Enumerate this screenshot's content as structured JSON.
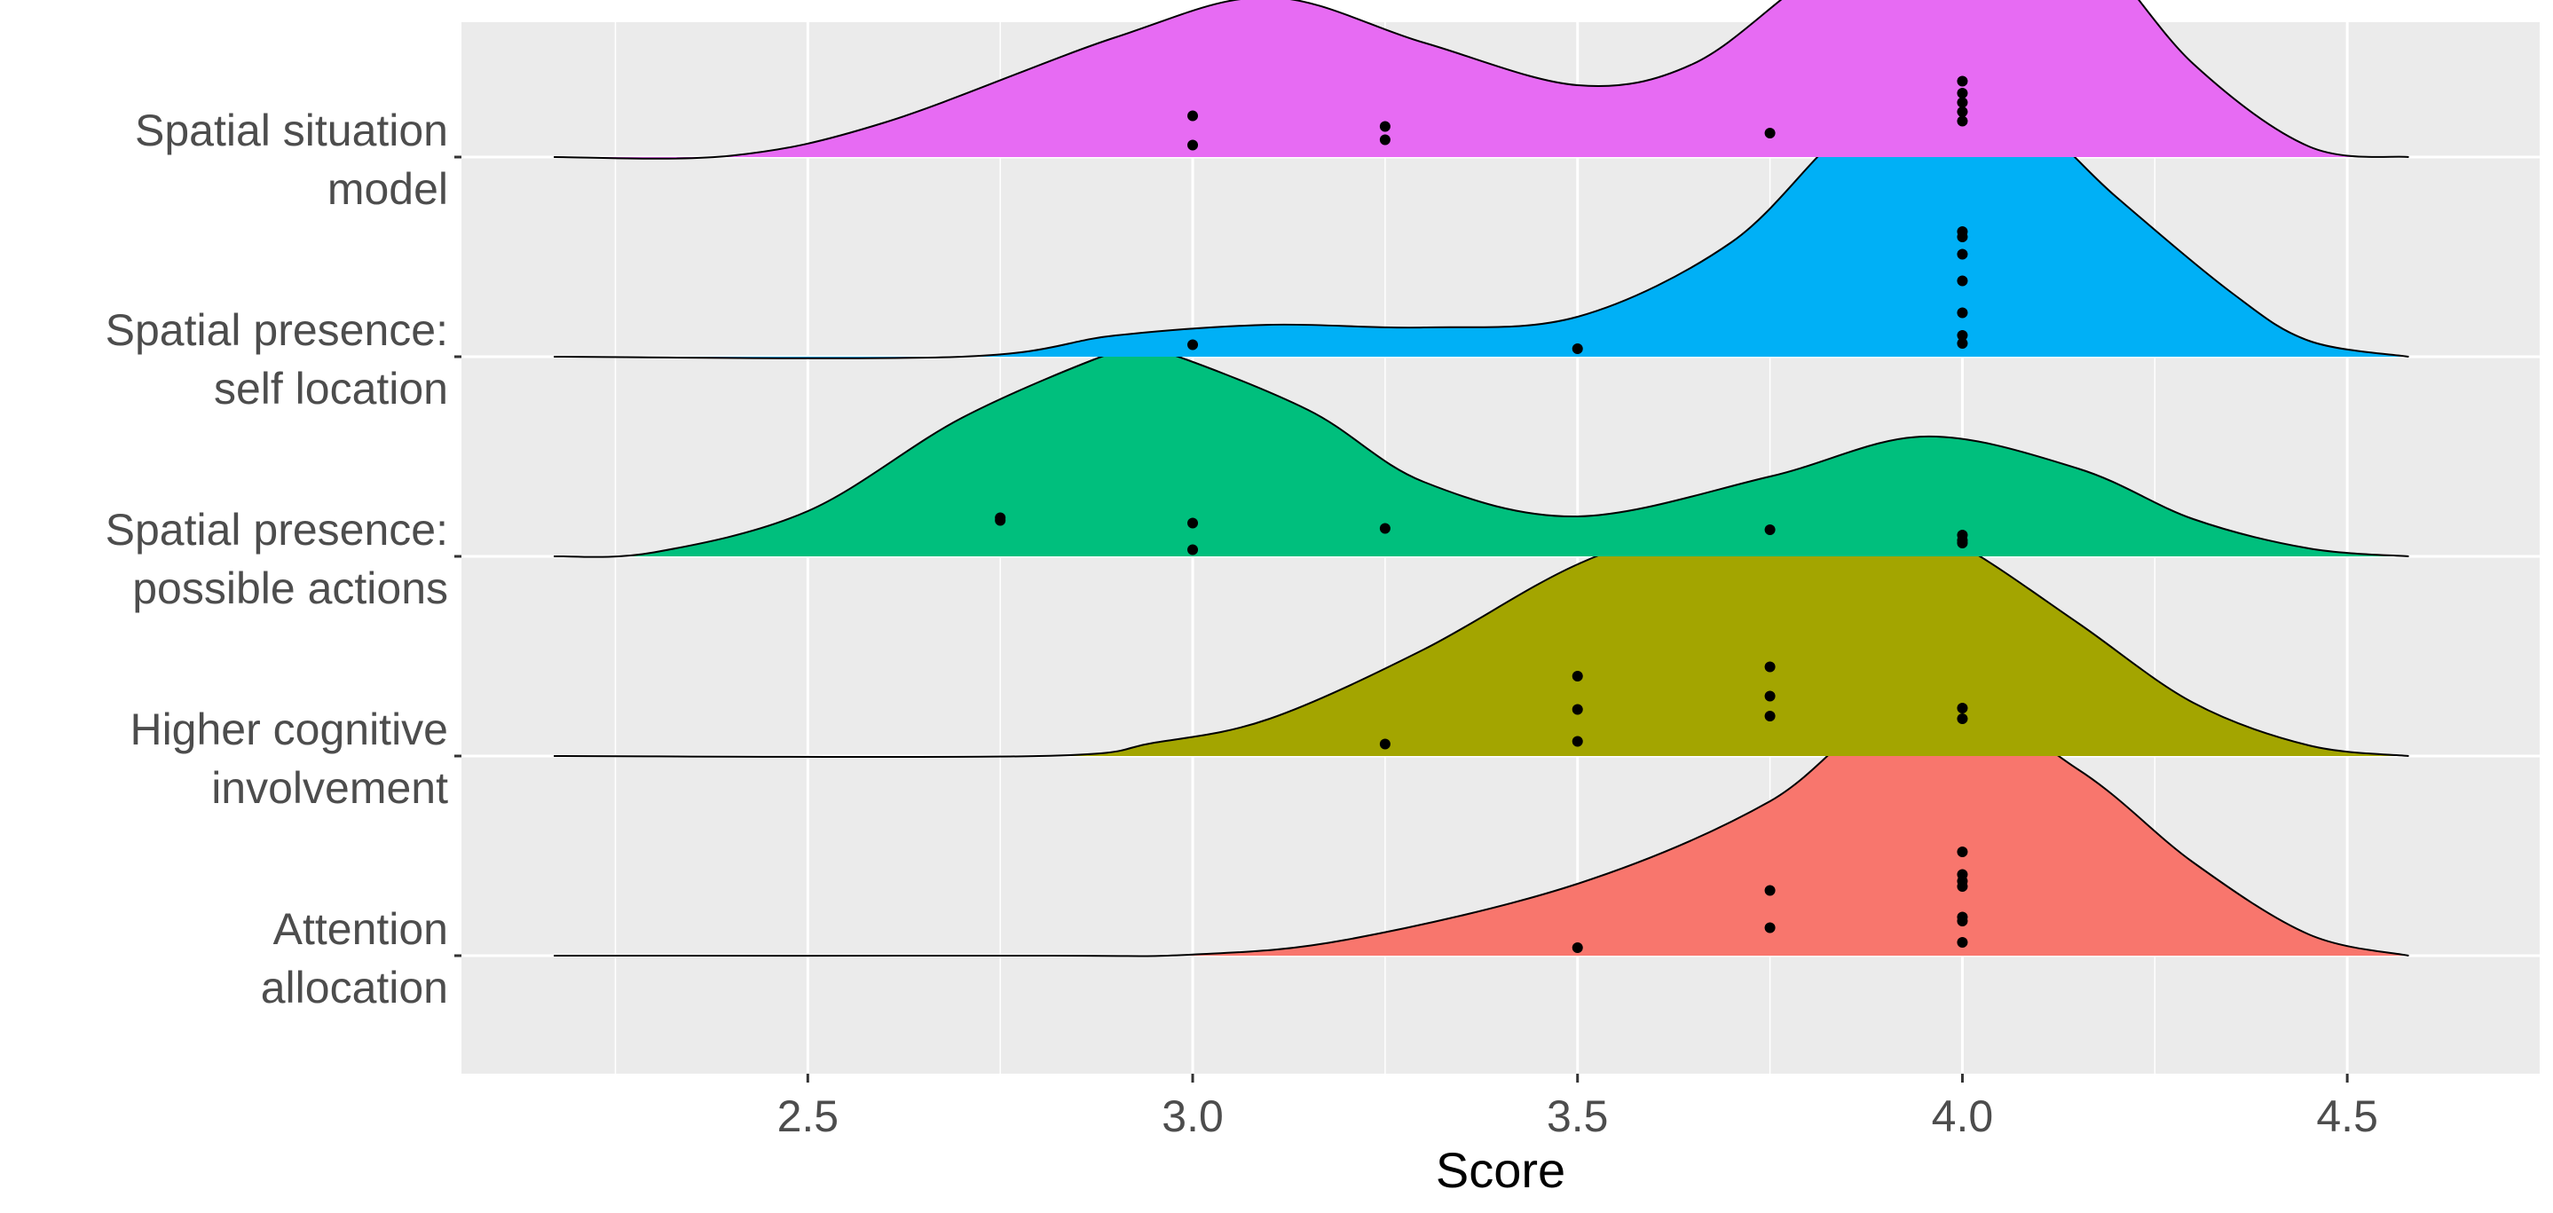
{
  "chart_data": {
    "type": "ridgeline",
    "xlabel": "Score",
    "ylabel": "",
    "title": "",
    "xlim": [
      2.05,
      4.75
    ],
    "x_ticks": [
      2.5,
      3.0,
      3.5,
      4.0,
      4.5
    ],
    "x_tick_labels": [
      "2.5",
      "3.0",
      "3.5",
      "4.0",
      "4.5"
    ],
    "density_range": [
      2.17,
      4.58
    ],
    "grid": true,
    "legend": "none",
    "categories": [
      {
        "name": "Attention allocation",
        "label_lines": [
          "Attention",
          "allocation"
        ],
        "color": "#F8766D",
        "density": [
          {
            "x": 2.17,
            "y": 0.0
          },
          {
            "x": 2.8,
            "y": 0.0
          },
          {
            "x": 3.0,
            "y": 0.004
          },
          {
            "x": 3.2,
            "y": 0.06
          },
          {
            "x": 3.5,
            "y": 0.27
          },
          {
            "x": 3.75,
            "y": 0.58
          },
          {
            "x": 3.95,
            "y": 1.0
          },
          {
            "x": 4.15,
            "y": 0.7
          },
          {
            "x": 4.3,
            "y": 0.35
          },
          {
            "x": 4.45,
            "y": 0.08
          },
          {
            "x": 4.58,
            "y": 0.0
          }
        ],
        "points": [
          {
            "x": 3.5,
            "j": 0.02
          },
          {
            "x": 3.75,
            "j": 0.17
          },
          {
            "x": 3.75,
            "j": 0.45
          },
          {
            "x": 4.0,
            "j": 0.06
          },
          {
            "x": 4.0,
            "j": 0.22
          },
          {
            "x": 4.0,
            "j": 0.25
          },
          {
            "x": 4.0,
            "j": 0.48
          },
          {
            "x": 4.0,
            "j": 0.52
          },
          {
            "x": 4.0,
            "j": 0.57
          },
          {
            "x": 4.0,
            "j": 0.74
          }
        ]
      },
      {
        "name": "Higher cognitive involvement",
        "label_lines": [
          "Higher cognitive",
          "involvement"
        ],
        "color": "#A3A500",
        "density": [
          {
            "x": 2.17,
            "y": 0.0
          },
          {
            "x": 2.8,
            "y": 0.0
          },
          {
            "x": 2.95,
            "y": 0.05
          },
          {
            "x": 3.1,
            "y": 0.14
          },
          {
            "x": 3.3,
            "y": 0.4
          },
          {
            "x": 3.5,
            "y": 0.72
          },
          {
            "x": 3.7,
            "y": 0.92
          },
          {
            "x": 3.85,
            "y": 1.0
          },
          {
            "x": 4.0,
            "y": 0.79
          },
          {
            "x": 4.15,
            "y": 0.5
          },
          {
            "x": 4.3,
            "y": 0.2
          },
          {
            "x": 4.45,
            "y": 0.04
          },
          {
            "x": 4.58,
            "y": 0.0
          }
        ],
        "points": [
          {
            "x": 3.25,
            "j": 0.05
          },
          {
            "x": 3.5,
            "j": 0.07
          },
          {
            "x": 3.5,
            "j": 0.31
          },
          {
            "x": 3.5,
            "j": 0.56
          },
          {
            "x": 3.75,
            "j": 0.26
          },
          {
            "x": 3.75,
            "j": 0.41
          },
          {
            "x": 3.75,
            "j": 0.63
          },
          {
            "x": 4.0,
            "j": 0.24
          },
          {
            "x": 4.0,
            "j": 0.32
          }
        ]
      },
      {
        "name": "Spatial presence: possible actions",
        "label_lines": [
          "Spatial presence:",
          "possible actions"
        ],
        "color": "#00BF7D",
        "density": [
          {
            "x": 2.17,
            "y": 0.0
          },
          {
            "x": 2.3,
            "y": 0.015
          },
          {
            "x": 2.5,
            "y": 0.17
          },
          {
            "x": 2.7,
            "y": 0.52
          },
          {
            "x": 2.9,
            "y": 0.77
          },
          {
            "x": 2.95,
            "y": 0.78
          },
          {
            "x": 3.15,
            "y": 0.55
          },
          {
            "x": 3.3,
            "y": 0.28
          },
          {
            "x": 3.5,
            "y": 0.15
          },
          {
            "x": 3.75,
            "y": 0.3
          },
          {
            "x": 3.95,
            "y": 0.45
          },
          {
            "x": 4.15,
            "y": 0.33
          },
          {
            "x": 4.3,
            "y": 0.14
          },
          {
            "x": 4.45,
            "y": 0.03
          },
          {
            "x": 4.58,
            "y": 0.0
          }
        ],
        "points": [
          {
            "x": 2.75,
            "j": 0.23
          },
          {
            "x": 2.75,
            "j": 0.25
          },
          {
            "x": 3.0,
            "j": 0.01
          },
          {
            "x": 3.0,
            "j": 0.21
          },
          {
            "x": 3.25,
            "j": 0.17
          },
          {
            "x": 3.75,
            "j": 0.16
          },
          {
            "x": 4.0,
            "j": 0.06
          },
          {
            "x": 4.0,
            "j": 0.08
          },
          {
            "x": 4.0,
            "j": 0.12
          }
        ]
      },
      {
        "name": "Spatial presence: self location",
        "label_lines": [
          "Spatial presence:",
          "self location"
        ],
        "color": "#00B0F6",
        "density": [
          {
            "x": 2.17,
            "y": 0.0
          },
          {
            "x": 2.7,
            "y": 0.0
          },
          {
            "x": 2.9,
            "y": 0.08
          },
          {
            "x": 3.1,
            "y": 0.12
          },
          {
            "x": 3.3,
            "y": 0.11
          },
          {
            "x": 3.5,
            "y": 0.15
          },
          {
            "x": 3.7,
            "y": 0.43
          },
          {
            "x": 3.85,
            "y": 0.85
          },
          {
            "x": 3.98,
            "y": 1.0
          },
          {
            "x": 4.1,
            "y": 0.86
          },
          {
            "x": 4.2,
            "y": 0.6
          },
          {
            "x": 4.35,
            "y": 0.24
          },
          {
            "x": 4.45,
            "y": 0.06
          },
          {
            "x": 4.58,
            "y": 0.0
          }
        ],
        "points": [
          {
            "x": 3.0,
            "j": 0.05
          },
          {
            "x": 3.5,
            "j": 0.02
          },
          {
            "x": 4.0,
            "j": 0.06
          },
          {
            "x": 4.0,
            "j": 0.12
          },
          {
            "x": 4.0,
            "j": 0.29
          },
          {
            "x": 4.0,
            "j": 0.53
          },
          {
            "x": 4.0,
            "j": 0.73
          },
          {
            "x": 4.0,
            "j": 0.86
          },
          {
            "x": 4.0,
            "j": 0.9
          }
        ]
      },
      {
        "name": "Spatial situation model",
        "label_lines": [
          "Spatial situation",
          "model"
        ],
        "color": "#E76BF3",
        "density": [
          {
            "x": 2.17,
            "y": 0.0
          },
          {
            "x": 2.4,
            "y": 0.005
          },
          {
            "x": 2.6,
            "y": 0.13
          },
          {
            "x": 2.9,
            "y": 0.45
          },
          {
            "x": 3.1,
            "y": 0.6
          },
          {
            "x": 3.3,
            "y": 0.43
          },
          {
            "x": 3.5,
            "y": 0.27
          },
          {
            "x": 3.65,
            "y": 0.35
          },
          {
            "x": 3.8,
            "y": 0.67
          },
          {
            "x": 3.97,
            "y": 1.0
          },
          {
            "x": 4.15,
            "y": 0.83
          },
          {
            "x": 4.3,
            "y": 0.35
          },
          {
            "x": 4.45,
            "y": 0.04
          },
          {
            "x": 4.58,
            "y": 0.0
          }
        ],
        "points": [
          {
            "x": 3.0,
            "j": 0.05
          },
          {
            "x": 3.0,
            "j": 0.27
          },
          {
            "x": 3.25,
            "j": 0.09
          },
          {
            "x": 3.25,
            "j": 0.19
          },
          {
            "x": 3.75,
            "j": 0.14
          },
          {
            "x": 4.0,
            "j": 0.23
          },
          {
            "x": 4.0,
            "j": 0.3
          },
          {
            "x": 4.0,
            "j": 0.37
          },
          {
            "x": 4.0,
            "j": 0.44
          },
          {
            "x": 4.0,
            "j": 0.53
          }
        ]
      }
    ]
  }
}
